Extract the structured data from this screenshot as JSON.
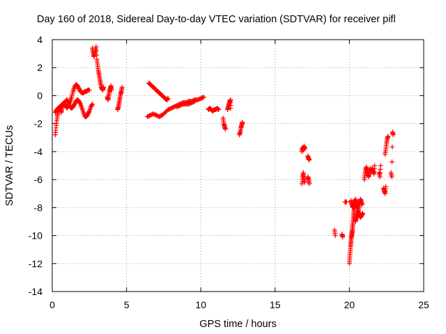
{
  "chart_data": {
    "type": "scatter",
    "title": "Day 160 of 2018, Sidereal Day-to-day VTEC variation (SDTVAR) for receiver pifl",
    "xlabel": "GPS time / hours",
    "ylabel": "SDTVAR / TECUs",
    "xlim": [
      0,
      25
    ],
    "ylim": [
      -14,
      4
    ],
    "xticks": [
      "0",
      "5",
      "10",
      "15",
      "20",
      "25"
    ],
    "yticks": [
      "4",
      "2",
      "0",
      "-2",
      "-4",
      "-6",
      "-8",
      "-10",
      "-12",
      "-14"
    ],
    "grid": true,
    "marker": "+",
    "color": "#ff0000",
    "series": [
      {
        "name": "SDTVAR",
        "segments": [
          [
            [
              0.2,
              -2.8
            ],
            [
              0.25,
              -2.3
            ],
            [
              0.3,
              -1.8
            ],
            [
              0.35,
              -1.4
            ],
            [
              0.4,
              -1.1
            ],
            [
              0.45,
              -0.9
            ],
            [
              0.5,
              -0.8
            ],
            [
              0.55,
              -1.0
            ],
            [
              0.6,
              -1.2
            ],
            [
              0.65,
              -0.9
            ],
            [
              0.7,
              -0.7
            ],
            [
              0.8,
              -0.6
            ],
            [
              0.9,
              -0.7
            ],
            [
              1.0,
              -0.9
            ],
            [
              1.1,
              -0.6
            ],
            [
              1.2,
              -0.4
            ],
            [
              1.3,
              -0.1
            ],
            [
              1.4,
              0.3
            ],
            [
              1.5,
              0.6
            ],
            [
              1.6,
              0.8
            ],
            [
              1.7,
              0.7
            ],
            [
              1.8,
              0.5
            ],
            [
              1.9,
              0.3
            ],
            [
              2.0,
              0.2
            ],
            [
              2.1,
              0.2
            ],
            [
              2.2,
              0.3
            ],
            [
              2.3,
              0.3
            ],
            [
              2.4,
              0.4
            ],
            [
              2.5,
              0.4
            ]
          ],
          [
            [
              0.2,
              -1.2
            ],
            [
              0.3,
              -1.0
            ],
            [
              0.4,
              -0.9
            ],
            [
              0.5,
              -0.8
            ],
            [
              0.6,
              -0.7
            ],
            [
              0.7,
              -0.6
            ],
            [
              0.8,
              -0.5
            ],
            [
              0.9,
              -0.4
            ],
            [
              1.0,
              -0.3
            ],
            [
              1.1,
              -0.5
            ],
            [
              1.2,
              -0.8
            ],
            [
              1.3,
              -0.9
            ],
            [
              1.4,
              -0.8
            ],
            [
              1.5,
              -0.6
            ],
            [
              1.6,
              -0.4
            ],
            [
              1.7,
              -0.3
            ],
            [
              1.8,
              -0.4
            ],
            [
              1.9,
              -0.6
            ],
            [
              2.0,
              -0.9
            ],
            [
              2.1,
              -1.2
            ],
            [
              2.2,
              -1.5
            ],
            [
              2.3,
              -1.5
            ],
            [
              2.4,
              -1.3
            ],
            [
              2.5,
              -1.1
            ],
            [
              2.6,
              -0.8
            ],
            [
              2.7,
              -0.6
            ]
          ],
          [
            [
              2.7,
              3.4
            ],
            [
              2.75,
              3.1
            ],
            [
              2.8,
              2.8
            ],
            [
              2.85,
              2.9
            ],
            [
              2.9,
              3.2
            ],
            [
              2.95,
              3.5
            ],
            [
              3.0,
              2.6
            ],
            [
              3.05,
              2.2
            ],
            [
              3.1,
              1.8
            ],
            [
              3.15,
              1.5
            ],
            [
              3.2,
              1.2
            ],
            [
              3.25,
              0.9
            ],
            [
              3.3,
              0.6
            ],
            [
              3.35,
              0.5
            ],
            [
              3.4,
              0.4
            ],
            [
              3.45,
              0.6
            ]
          ],
          [
            [
              3.7,
              -0.1
            ],
            [
              3.75,
              -0.3
            ],
            [
              3.8,
              0.0
            ],
            [
              3.85,
              0.3
            ],
            [
              3.9,
              0.5
            ],
            [
              3.95,
              0.7
            ],
            [
              4.0,
              0.4
            ]
          ],
          [
            [
              4.4,
              -1.0
            ],
            [
              4.45,
              -0.8
            ],
            [
              4.5,
              -0.5
            ],
            [
              4.55,
              -0.2
            ],
            [
              4.6,
              0.1
            ],
            [
              4.65,
              0.3
            ],
            [
              4.7,
              0.6
            ]
          ],
          [
            [
              6.5,
              0.9
            ],
            [
              6.6,
              0.8
            ],
            [
              6.7,
              0.7
            ],
            [
              6.8,
              0.6
            ],
            [
              6.9,
              0.5
            ],
            [
              7.0,
              0.4
            ],
            [
              7.1,
              0.3
            ],
            [
              7.2,
              0.2
            ],
            [
              7.3,
              0.1
            ],
            [
              7.4,
              0.0
            ],
            [
              7.5,
              -0.1
            ],
            [
              7.6,
              -0.2
            ],
            [
              7.7,
              -0.3
            ],
            [
              7.8,
              -0.2
            ]
          ],
          [
            [
              6.4,
              -1.5
            ],
            [
              6.6,
              -1.4
            ],
            [
              6.8,
              -1.3
            ],
            [
              7.0,
              -1.4
            ],
            [
              7.2,
              -1.5
            ],
            [
              7.4,
              -1.4
            ],
            [
              7.6,
              -1.2
            ],
            [
              7.8,
              -1.0
            ],
            [
              8.0,
              -0.9
            ],
            [
              8.2,
              -0.8
            ],
            [
              8.4,
              -0.7
            ],
            [
              8.6,
              -0.6
            ],
            [
              8.8,
              -0.5
            ],
            [
              9.0,
              -0.5
            ],
            [
              9.2,
              -0.4
            ],
            [
              9.4,
              -0.4
            ],
            [
              9.6,
              -0.3
            ],
            [
              9.8,
              -0.3
            ],
            [
              10.0,
              -0.2
            ],
            [
              10.2,
              -0.1
            ]
          ],
          [
            [
              8.4,
              -0.8
            ],
            [
              8.6,
              -0.7
            ],
            [
              8.8,
              -0.6
            ],
            [
              9.0,
              -0.6
            ],
            [
              9.2,
              -0.6
            ],
            [
              9.4,
              -0.5
            ],
            [
              9.6,
              -0.4
            ]
          ],
          [
            [
              10.5,
              -1.0
            ],
            [
              10.6,
              -0.9
            ],
            [
              10.7,
              -1.0
            ],
            [
              10.8,
              -1.1
            ],
            [
              10.9,
              -1.0
            ],
            [
              11.0,
              -1.0
            ],
            [
              11.1,
              -0.9
            ],
            [
              11.2,
              -1.0
            ]
          ],
          [
            [
              11.5,
              -1.6
            ],
            [
              11.55,
              -2.0
            ],
            [
              11.6,
              -2.2
            ],
            [
              11.65,
              -2.4
            ]
          ],
          [
            [
              11.8,
              -1.0
            ],
            [
              11.85,
              -0.8
            ],
            [
              11.9,
              -0.6
            ],
            [
              11.95,
              -0.4
            ],
            [
              12.0,
              -0.3
            ],
            [
              12.0,
              -0.9
            ]
          ],
          [
            [
              12.6,
              -2.8
            ],
            [
              12.65,
              -2.6
            ],
            [
              12.7,
              -2.3
            ],
            [
              12.75,
              -2.1
            ],
            [
              12.8,
              -1.9
            ]
          ],
          [
            [
              16.8,
              -4.0
            ],
            [
              16.85,
              -3.7
            ],
            [
              16.9,
              -3.9
            ],
            [
              16.95,
              -3.6
            ],
            [
              17.0,
              -3.8
            ]
          ],
          [
            [
              16.8,
              -6.3
            ],
            [
              16.85,
              -5.8
            ],
            [
              16.9,
              -5.5
            ],
            [
              16.95,
              -5.9
            ],
            [
              17.0,
              -6.2
            ]
          ],
          [
            [
              17.2,
              -4.3
            ],
            [
              17.25,
              -4.5
            ],
            [
              17.3,
              -4.6
            ]
          ],
          [
            [
              17.2,
              -5.8
            ],
            [
              17.25,
              -6.0
            ],
            [
              17.3,
              -6.3
            ]
          ],
          [
            [
              19.0,
              -9.6
            ],
            [
              19.05,
              -10.0
            ]
          ],
          [
            [
              19.5,
              -9.9
            ],
            [
              19.55,
              -10.1
            ]
          ],
          [
            [
              19.7,
              -7.6
            ],
            [
              19.8,
              -7.6
            ]
          ],
          [
            [
              20.0,
              -12.0
            ],
            [
              20.02,
              -11.6
            ],
            [
              20.05,
              -11.2
            ],
            [
              20.08,
              -10.8
            ],
            [
              20.1,
              -10.5
            ],
            [
              20.12,
              -10.2
            ],
            [
              20.15,
              -10.0
            ],
            [
              20.18,
              -9.8
            ],
            [
              20.2,
              -9.6
            ],
            [
              20.22,
              -9.3
            ],
            [
              20.25,
              -9.0
            ],
            [
              20.28,
              -8.7
            ],
            [
              20.3,
              -8.4
            ],
            [
              20.32,
              -8.1
            ],
            [
              20.35,
              -7.9
            ],
            [
              20.38,
              -7.7
            ],
            [
              20.4,
              -7.6
            ]
          ],
          [
            [
              20.1,
              -7.5
            ],
            [
              20.15,
              -7.7
            ],
            [
              20.2,
              -7.9
            ],
            [
              20.25,
              -8.0
            ],
            [
              20.3,
              -7.8
            ],
            [
              20.35,
              -7.6
            ],
            [
              20.4,
              -7.4
            ],
            [
              20.45,
              -7.6
            ],
            [
              20.5,
              -7.8
            ],
            [
              20.55,
              -8.0
            ],
            [
              20.6,
              -8.3
            ],
            [
              20.65,
              -8.5
            ],
            [
              20.7,
              -8.6
            ],
            [
              20.75,
              -8.7
            ],
            [
              20.8,
              -8.6
            ],
            [
              20.85,
              -8.5
            ],
            [
              20.9,
              -8.4
            ]
          ],
          [
            [
              20.4,
              -9.0
            ],
            [
              20.45,
              -8.8
            ],
            [
              20.5,
              -8.6
            ],
            [
              20.55,
              -8.4
            ],
            [
              20.6,
              -8.2
            ],
            [
              20.65,
              -7.9
            ],
            [
              20.7,
              -7.6
            ],
            [
              20.75,
              -7.4
            ],
            [
              20.8,
              -7.6
            ],
            [
              20.85,
              -7.8
            ]
          ],
          [
            [
              21.0,
              -6.0
            ],
            [
              21.05,
              -5.6
            ],
            [
              21.1,
              -5.3
            ],
            [
              21.15,
              -5.1
            ],
            [
              21.2,
              -5.4
            ],
            [
              21.25,
              -5.6
            ],
            [
              21.3,
              -5.8
            ],
            [
              21.35,
              -5.5
            ],
            [
              21.4,
              -5.2
            ],
            [
              21.45,
              -5.4
            ],
            [
              21.5,
              -5.3
            ],
            [
              21.55,
              -5.2
            ],
            [
              21.6,
              -5.4
            ],
            [
              21.65,
              -5.6
            ],
            [
              21.7,
              -5.0
            ]
          ],
          [
            [
              22.0,
              -5.5
            ],
            [
              22.05,
              -5.8
            ],
            [
              22.1,
              -5.0
            ]
          ],
          [
            [
              22.3,
              -6.6
            ],
            [
              22.35,
              -6.8
            ],
            [
              22.4,
              -7.0
            ],
            [
              22.45,
              -6.5
            ]
          ],
          [
            [
              22.4,
              -4.2
            ],
            [
              22.45,
              -3.8
            ],
            [
              22.5,
              -3.4
            ],
            [
              22.55,
              -3.1
            ],
            [
              22.6,
              -2.9
            ]
          ],
          [
            [
              22.8,
              -5.5
            ],
            [
              22.85,
              -5.8
            ],
            [
              22.9,
              -2.6
            ],
            [
              22.95,
              -2.8
            ]
          ]
        ]
      }
    ]
  }
}
